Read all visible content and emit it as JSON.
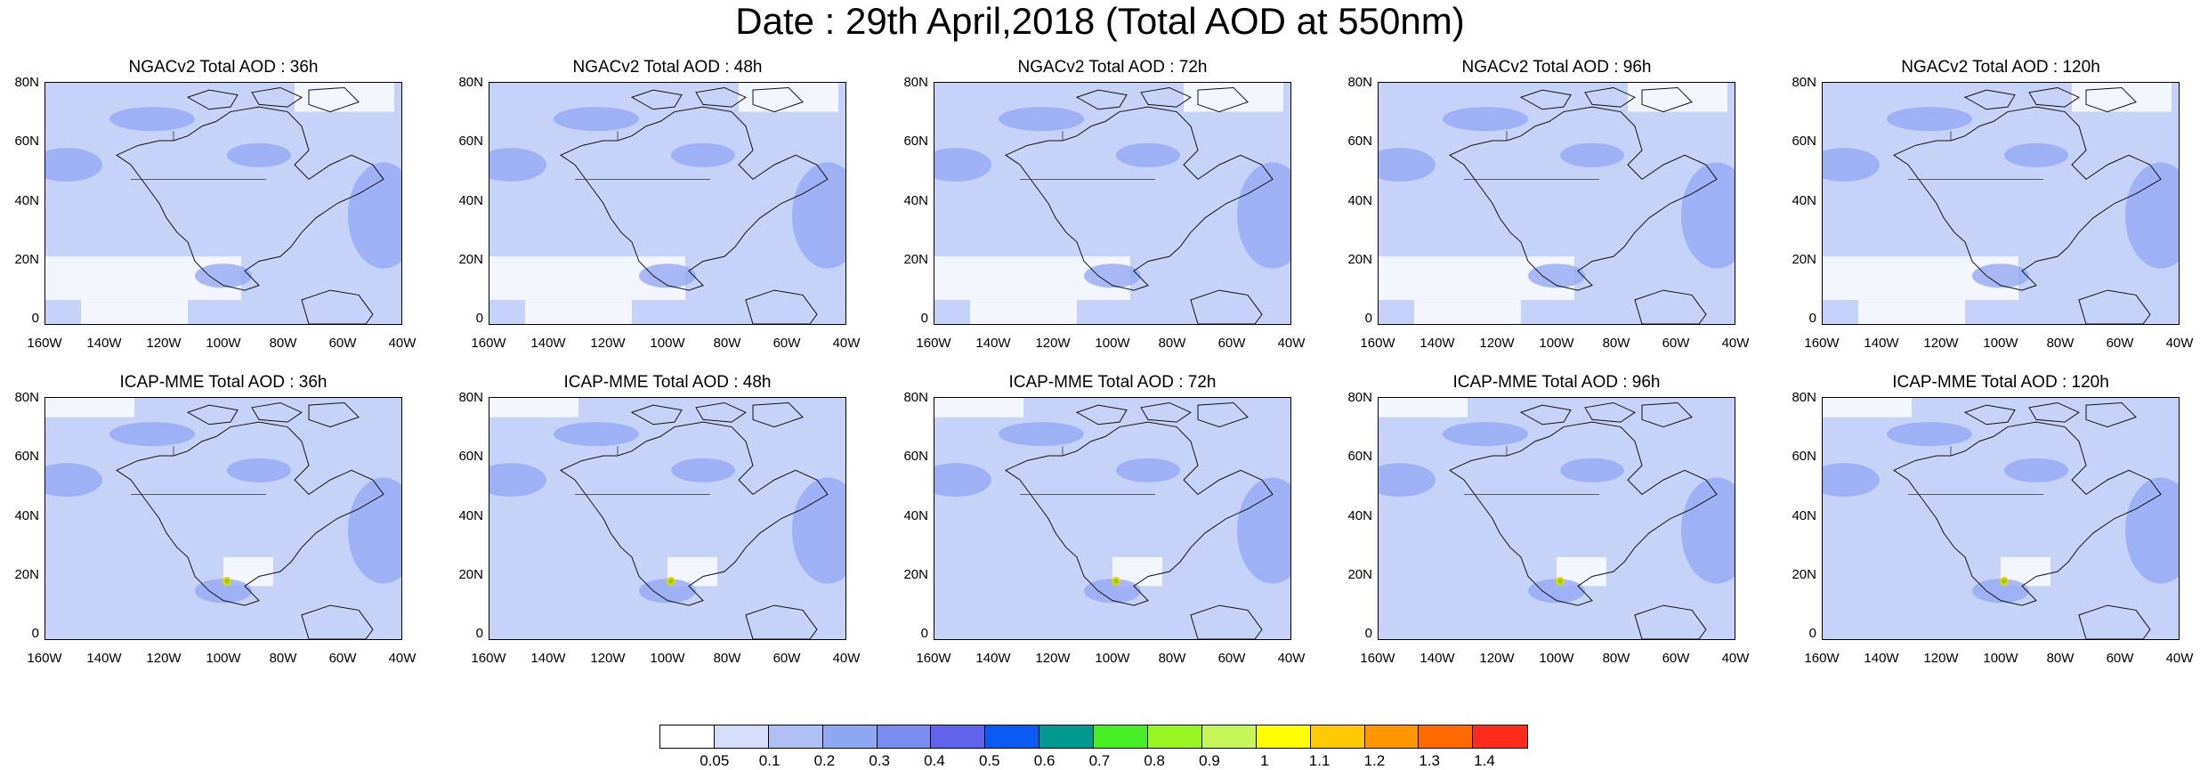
{
  "title": "Date : 29th April,2018 (Total AOD at 550nm)",
  "panels": [
    {
      "title": "NGACv2 Total AOD : 36h",
      "model": "NGACv2",
      "lead": "36h"
    },
    {
      "title": "NGACv2 Total AOD : 48h",
      "model": "NGACv2",
      "lead": "48h"
    },
    {
      "title": "NGACv2 Total AOD : 72h",
      "model": "NGACv2",
      "lead": "72h"
    },
    {
      "title": "NGACv2 Total AOD : 96h",
      "model": "NGACv2",
      "lead": "96h"
    },
    {
      "title": "NGACv2 Total AOD : 120h",
      "model": "NGACv2",
      "lead": "120h"
    },
    {
      "title": "ICAP-MME Total AOD : 36h",
      "model": "ICAP-MME",
      "lead": "36h"
    },
    {
      "title": "ICAP-MME Total AOD : 48h",
      "model": "ICAP-MME",
      "lead": "48h"
    },
    {
      "title": "ICAP-MME Total AOD : 72h",
      "model": "ICAP-MME",
      "lead": "72h"
    },
    {
      "title": "ICAP-MME Total AOD : 96h",
      "model": "ICAP-MME",
      "lead": "96h"
    },
    {
      "title": "ICAP-MME Total AOD : 120h",
      "model": "ICAP-MME",
      "lead": "120h"
    }
  ],
  "lat_ticks": [
    "80N",
    "60N",
    "40N",
    "20N",
    "0"
  ],
  "lon_ticks": [
    "160W",
    "140W",
    "120W",
    "100W",
    "80W",
    "60W",
    "40W"
  ],
  "colorbar": {
    "labels": [
      "0.05",
      "0.1",
      "0.2",
      "0.3",
      "0.4",
      "0.5",
      "0.6",
      "0.7",
      "0.8",
      "0.9",
      "1",
      "1.1",
      "1.2",
      "1.3",
      "1.4"
    ],
    "colors": [
      "#ffffff",
      "#d4ddfa",
      "#b0c0f5",
      "#8fa8f2",
      "#7a8cf0",
      "#6262ea",
      "#0a5af5",
      "#00998f",
      "#44ee22",
      "#99f522",
      "#c8f55a",
      "#ffff00",
      "#ffc800",
      "#ff9600",
      "#ff6a00",
      "#ff2a1a"
    ]
  }
}
